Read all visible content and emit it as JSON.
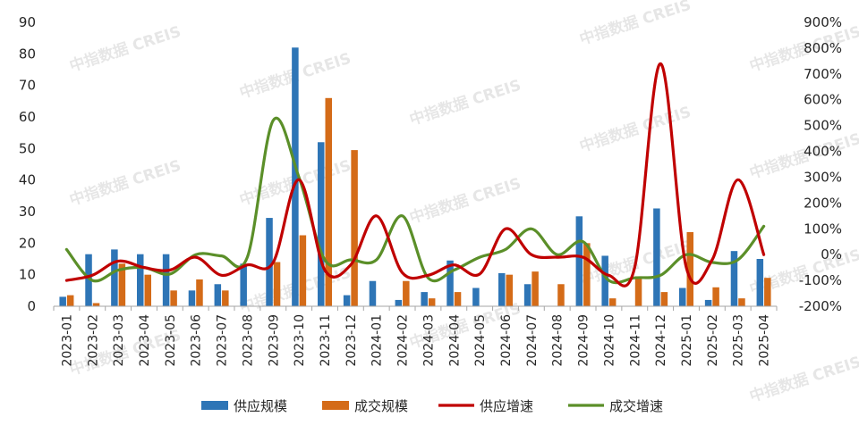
{
  "watermark": "中指数据 CREIS",
  "chart_data": {
    "type": "bar+line",
    "title": "",
    "categories": [
      "2023-01",
      "2023-02",
      "2023-03",
      "2023-04",
      "2023-05",
      "2023-06",
      "2023-07",
      "2023-08",
      "2023-09",
      "2023-10",
      "2023-11",
      "2023-12",
      "2024-01",
      "2024-02",
      "2024-03",
      "2024-04",
      "2024-05",
      "2024-06",
      "2024-07",
      "2024-08",
      "2024-09",
      "2024-10",
      "2024-11",
      "2024-12",
      "2025-01",
      "2025-02",
      "2025-03",
      "2025-04"
    ],
    "y_left": {
      "min": 0,
      "max": 90,
      "ticks": [
        "0",
        "10",
        "20",
        "30",
        "40",
        "50",
        "60",
        "70",
        "80",
        "90"
      ]
    },
    "y_right": {
      "min": -200,
      "max": 900,
      "ticks": [
        "-200%",
        "-100%",
        "0%",
        "100%",
        "200%",
        "300%",
        "400%",
        "500%",
        "600%",
        "700%",
        "800%",
        "900%"
      ]
    },
    "bar_series": [
      {
        "name": "供应规模",
        "color": "#2e75b6",
        "axis": "left",
        "values": [
          3.0,
          16.5,
          18.0,
          16.5,
          16.5,
          5.0,
          7.0,
          13.5,
          28.0,
          82.0,
          52.0,
          3.5,
          8.0,
          2.0,
          4.5,
          14.5,
          5.8,
          10.5,
          7.0,
          0,
          28.5,
          16.0,
          0,
          31.0,
          5.8,
          2.0,
          17.5,
          15.0
        ]
      },
      {
        "name": "成交规模",
        "color": "#d46b18",
        "axis": "left",
        "values": [
          3.5,
          1.0,
          13.5,
          10.0,
          5.0,
          8.5,
          5.0,
          0,
          14.0,
          22.5,
          66.0,
          49.5,
          0,
          8.0,
          2.5,
          4.5,
          0,
          10.0,
          11.0,
          7.0,
          20.0,
          2.5,
          9.5,
          4.5,
          23.5,
          6.0,
          2.5,
          9.0
        ]
      }
    ],
    "line_series": [
      {
        "name": "供应增速",
        "color": "#c00000",
        "axis": "right",
        "values": [
          -100,
          -80,
          -25,
          -50,
          -60,
          -10,
          -80,
          -40,
          -30,
          290,
          -60,
          -40,
          150,
          -70,
          -80,
          -40,
          -75,
          100,
          0,
          -10,
          -10,
          -80,
          -50,
          740,
          -50,
          -20,
          290,
          0
        ]
      },
      {
        "name": "成交增速",
        "color": "#5b8f29",
        "axis": "right",
        "values": [
          20,
          -100,
          -60,
          -50,
          -75,
          0,
          -5,
          -10,
          520,
          300,
          -20,
          -20,
          -20,
          150,
          -90,
          -60,
          -10,
          20,
          100,
          0,
          50,
          -100,
          -90,
          -80,
          0,
          -30,
          -20,
          110
        ]
      }
    ],
    "legend": [
      "供应规模",
      "成交规模",
      "供应增速",
      "成交增速"
    ],
    "legend_position": "bottom",
    "grid": false
  }
}
